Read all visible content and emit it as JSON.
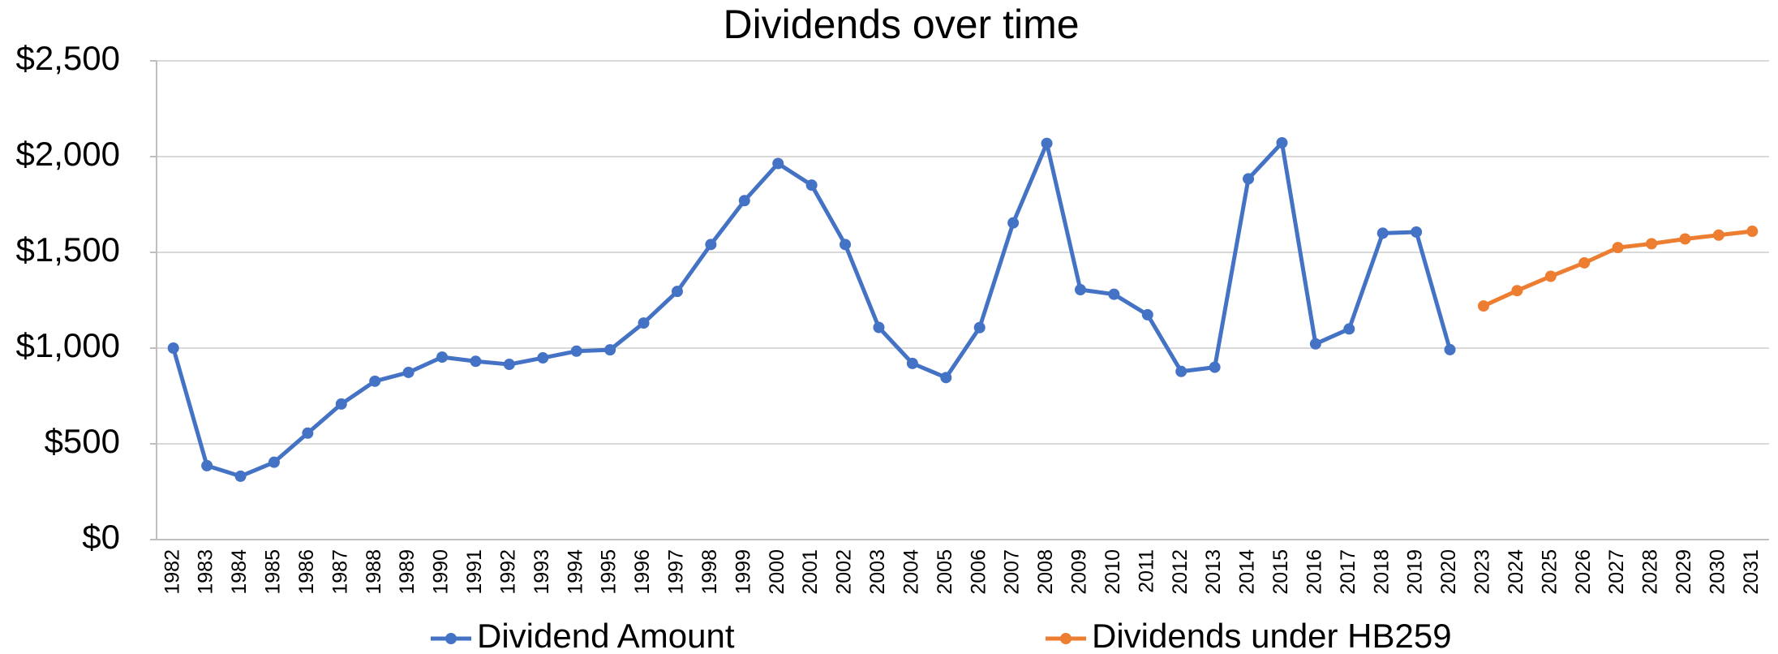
{
  "chart_data": {
    "type": "line",
    "title": "Dividends over time",
    "categories": [
      "1982",
      "1983",
      "1984",
      "1985",
      "1986",
      "1987",
      "1988",
      "1989",
      "1990",
      "1991",
      "1992",
      "1993",
      "1994",
      "1995",
      "1996",
      "1997",
      "1998",
      "1999",
      "2000",
      "2001",
      "2002",
      "2003",
      "2004",
      "2005",
      "2006",
      "2007",
      "2008",
      "2009",
      "2010",
      "2011",
      "2012",
      "2013",
      "2014",
      "2015",
      "2016",
      "2017",
      "2018",
      "2019",
      "2020",
      "2023",
      "2024",
      "2025",
      "2026",
      "2027",
      "2028",
      "2029",
      "2030",
      "2031"
    ],
    "series": [
      {
        "name": "Dividend Amount",
        "color": "#4472c4",
        "values": [
          1000,
          386,
          331,
          404,
          556,
          708,
          827,
          873,
          953,
          931,
          915,
          949,
          984,
          991,
          1131,
          1296,
          1541,
          1770,
          1964,
          1851,
          1541,
          1108,
          920,
          846,
          1107,
          1654,
          2069,
          1305,
          1281,
          1174,
          878,
          900,
          1884,
          2072,
          1022,
          1100,
          1600,
          1606,
          992,
          null,
          null,
          null,
          null,
          null,
          null,
          null,
          null,
          null
        ]
      },
      {
        "name": "Dividends under HB259",
        "color": "#ed7d31",
        "values": [
          null,
          null,
          null,
          null,
          null,
          null,
          null,
          null,
          null,
          null,
          null,
          null,
          null,
          null,
          null,
          null,
          null,
          null,
          null,
          null,
          null,
          null,
          null,
          null,
          null,
          null,
          null,
          null,
          null,
          null,
          null,
          null,
          null,
          null,
          null,
          null,
          null,
          null,
          null,
          1220,
          1300,
          1375,
          1445,
          1525,
          1545,
          1570,
          1590,
          1610
        ]
      }
    ],
    "ylim": [
      0,
      2500
    ],
    "yticks": [
      {
        "value": 0,
        "label": "$0"
      },
      {
        "value": 500,
        "label": "$500"
      },
      {
        "value": 1000,
        "label": "$1,000"
      },
      {
        "value": 1500,
        "label": "$1,500"
      },
      {
        "value": 2000,
        "label": "$2,000"
      },
      {
        "value": 2500,
        "label": "$2,500"
      }
    ],
    "grid": true,
    "legend": "bottom"
  }
}
